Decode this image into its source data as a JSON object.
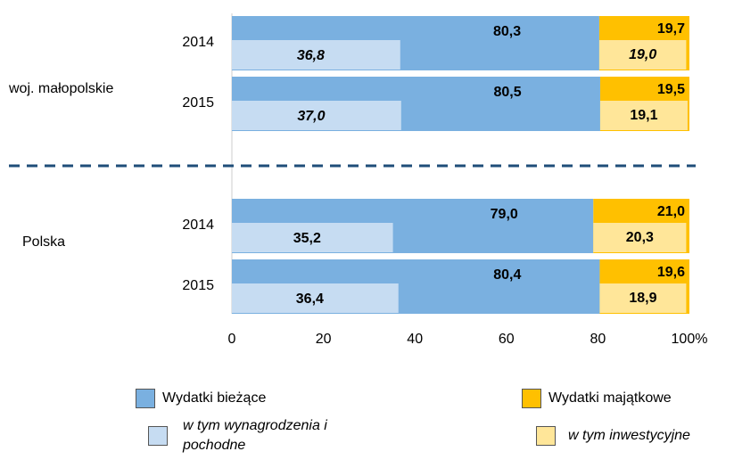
{
  "chart_data": {
    "type": "bar",
    "groups": [
      "woj. małopolskie",
      "Polska"
    ],
    "categories": [
      "2014",
      "2015",
      "2014",
      "2015"
    ],
    "series": [
      {
        "name": "Wydatki bieżące",
        "color": "#7ab0e0",
        "values": [
          80.3,
          80.5,
          79.0,
          80.4
        ],
        "value_labels": [
          "80,3",
          "80,5",
          "79,0",
          "80,4"
        ]
      },
      {
        "name": "Wydatki majątkowe",
        "color": "#ffc000",
        "values": [
          19.7,
          19.5,
          21.0,
          19.6
        ],
        "value_labels": [
          "19,7",
          "19,5",
          "21,0",
          "19,6"
        ]
      },
      {
        "name": "w tym wynagrodzenia i pochodne",
        "color": "#c6dcf2",
        "values": [
          36.8,
          37.0,
          35.2,
          36.4
        ],
        "value_labels": [
          "36,8",
          "37,0",
          "35,2",
          "36,4"
        ]
      },
      {
        "name": "w tym inwestycyjne",
        "color": "#ffe699",
        "values": [
          19.0,
          19.1,
          20.3,
          18.9
        ],
        "value_labels": [
          "19,0",
          "19,1",
          "20,3",
          "18,9"
        ]
      }
    ],
    "xlim": [
      0,
      100
    ],
    "xticks": [
      0,
      20,
      40,
      60,
      80,
      {
        "value": 100,
        "label": "100%"
      }
    ],
    "grid": false
  }
}
